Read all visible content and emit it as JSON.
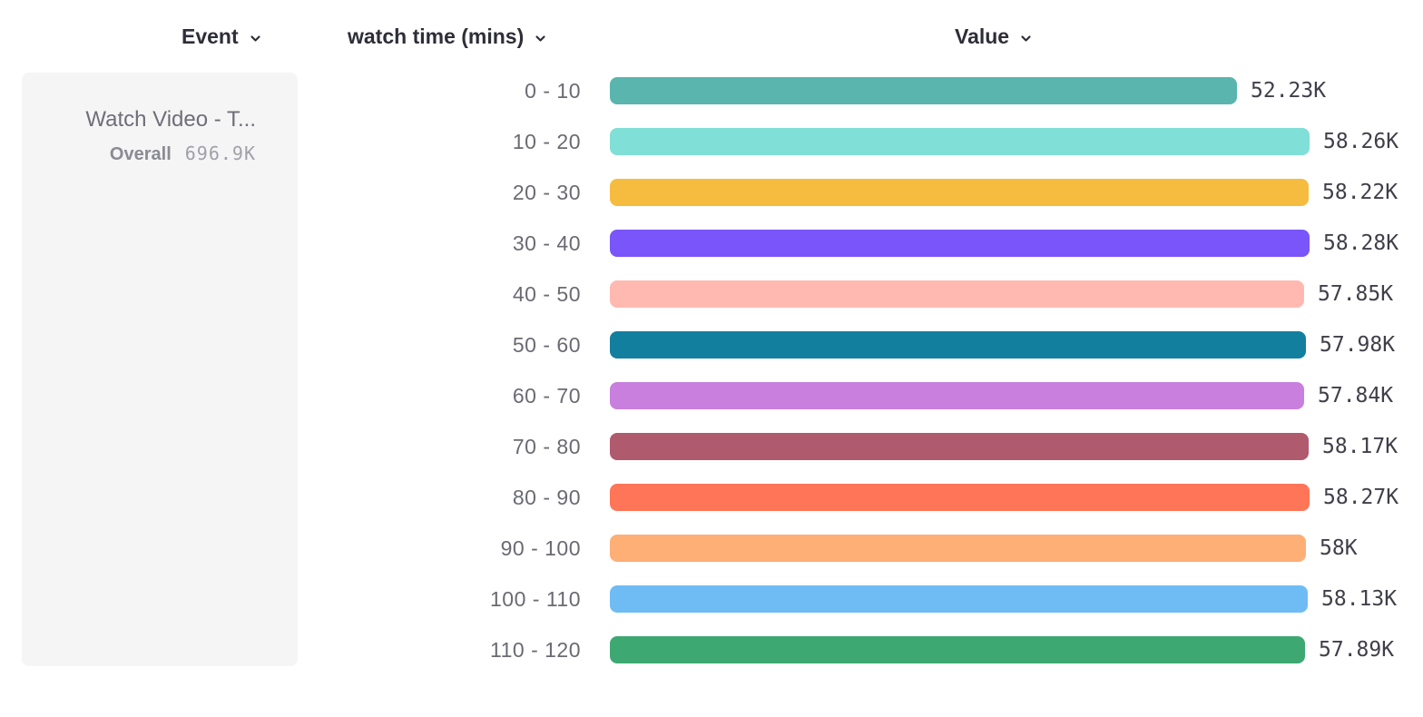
{
  "columns": {
    "event": {
      "label": "Event"
    },
    "breakdown": {
      "label": "watch time (mins)"
    },
    "value": {
      "label": "Value"
    }
  },
  "event_panel": {
    "event_name": "Watch Video - T...",
    "overall_label": "Overall",
    "overall_value": "696.9K"
  },
  "icons": {
    "chevron_down": "chevron-down"
  },
  "chart_data": {
    "type": "bar",
    "orientation": "horizontal",
    "title": "",
    "xlabel": "Value",
    "ylabel": "watch time (mins)",
    "categories": [
      "0 - 10",
      "10 - 20",
      "20 - 30",
      "30 - 40",
      "40 - 50",
      "50 - 60",
      "60 - 70",
      "70 - 80",
      "80 - 90",
      "90 - 100",
      "100 - 110",
      "110 - 120"
    ],
    "values": [
      52230,
      58260,
      58220,
      58280,
      57850,
      57980,
      57840,
      58170,
      58270,
      58000,
      58130,
      57890
    ],
    "value_labels": [
      "52.23K",
      "58.26K",
      "58.22K",
      "58.28K",
      "57.85K",
      "57.98K",
      "57.84K",
      "58.17K",
      "58.27K",
      "58K",
      "58.13K",
      "57.89K"
    ],
    "colors": [
      "#59B5AE",
      "#80DFD6",
      "#F6BC3F",
      "#7A55FA",
      "#FFB9B0",
      "#137F9F",
      "#C87FDE",
      "#B05A6D",
      "#FF7558",
      "#FDAF76",
      "#6FBCF4",
      "#3EA873"
    ],
    "xlim": [
      0,
      58280
    ],
    "grid": false,
    "legend": false,
    "accent_text_color": "#3f3f49",
    "label_text_color": "#6a6a73"
  }
}
